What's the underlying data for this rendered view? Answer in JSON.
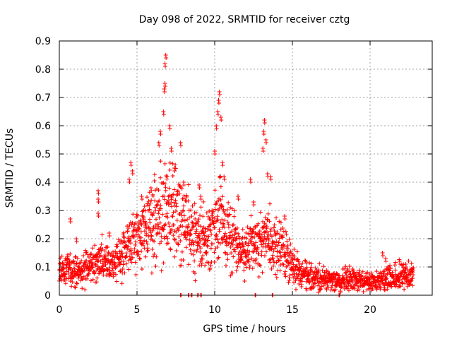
{
  "chart_data": {
    "type": "scatter",
    "title": "Day 098 of 2022, SRMTID for receiver cztg",
    "xlabel": "GPS time / hours",
    "ylabel": "SRMTID / TECUs",
    "xlim": [
      0,
      24
    ],
    "ylim": [
      0,
      0.9
    ],
    "xticks": [
      0,
      5,
      10,
      15,
      20
    ],
    "xtick_labels": [
      "0",
      "5",
      "10",
      "15",
      "20"
    ],
    "yticks": [
      0,
      0.1,
      0.2,
      0.3,
      0.4,
      0.5,
      0.6,
      0.7,
      0.8,
      0.9
    ],
    "ytick_labels": [
      "0",
      "0.1",
      "0.2",
      "0.3",
      "0.4",
      "0.5",
      "0.6",
      "0.7",
      "0.8",
      "0.9"
    ],
    "grid": true,
    "marker": "+",
    "color": "#ff0000",
    "series": [
      {
        "name": "SRMTID",
        "profile": [
          [
            0.0,
            0.08
          ],
          [
            0.5,
            0.09
          ],
          [
            1.0,
            0.08
          ],
          [
            1.5,
            0.09
          ],
          [
            2.0,
            0.1
          ],
          [
            2.5,
            0.12
          ],
          [
            3.0,
            0.12
          ],
          [
            3.5,
            0.12
          ],
          [
            4.0,
            0.14
          ],
          [
            4.5,
            0.17
          ],
          [
            5.0,
            0.2
          ],
          [
            5.5,
            0.22
          ],
          [
            6.0,
            0.25
          ],
          [
            6.5,
            0.3
          ],
          [
            7.0,
            0.32
          ],
          [
            7.5,
            0.3
          ],
          [
            8.0,
            0.26
          ],
          [
            8.5,
            0.23
          ],
          [
            9.0,
            0.2
          ],
          [
            9.5,
            0.19
          ],
          [
            10.0,
            0.25
          ],
          [
            10.5,
            0.27
          ],
          [
            11.0,
            0.2
          ],
          [
            11.5,
            0.16
          ],
          [
            12.0,
            0.15
          ],
          [
            12.5,
            0.18
          ],
          [
            13.0,
            0.2
          ],
          [
            13.5,
            0.19
          ],
          [
            14.0,
            0.18
          ],
          [
            14.5,
            0.16
          ],
          [
            15.0,
            0.12
          ],
          [
            15.5,
            0.08
          ],
          [
            16.0,
            0.07
          ],
          [
            16.5,
            0.06
          ],
          [
            17.0,
            0.06
          ],
          [
            17.5,
            0.05
          ],
          [
            18.0,
            0.05
          ],
          [
            18.5,
            0.06
          ],
          [
            19.0,
            0.06
          ],
          [
            19.5,
            0.05
          ],
          [
            20.0,
            0.04
          ],
          [
            20.5,
            0.05
          ],
          [
            21.0,
            0.06
          ],
          [
            21.5,
            0.06
          ],
          [
            22.0,
            0.07
          ],
          [
            22.5,
            0.07
          ],
          [
            22.8,
            0.06
          ]
        ],
        "peaks": [
          [
            0.7,
            0.27
          ],
          [
            1.1,
            0.2
          ],
          [
            2.5,
            0.37
          ],
          [
            2.5,
            0.34
          ],
          [
            2.5,
            0.29
          ],
          [
            3.2,
            0.22
          ],
          [
            4.6,
            0.47
          ],
          [
            4.5,
            0.41
          ],
          [
            4.7,
            0.44
          ],
          [
            5.3,
            0.35
          ],
          [
            5.9,
            0.38
          ],
          [
            6.4,
            0.54
          ],
          [
            6.5,
            0.58
          ],
          [
            6.7,
            0.65
          ],
          [
            6.75,
            0.73
          ],
          [
            6.8,
            0.75
          ],
          [
            6.8,
            0.82
          ],
          [
            6.85,
            0.85
          ],
          [
            7.1,
            0.6
          ],
          [
            7.2,
            0.52
          ],
          [
            7.4,
            0.45
          ],
          [
            7.8,
            0.54
          ],
          [
            8.0,
            0.4
          ],
          [
            9.0,
            0.39
          ],
          [
            9.1,
            0.35
          ],
          [
            10.0,
            0.51
          ],
          [
            10.1,
            0.6
          ],
          [
            10.2,
            0.65
          ],
          [
            10.25,
            0.69
          ],
          [
            10.3,
            0.72
          ],
          [
            10.4,
            0.63
          ],
          [
            10.5,
            0.47
          ],
          [
            10.6,
            0.42
          ],
          [
            11.5,
            0.35
          ],
          [
            12.3,
            0.41
          ],
          [
            12.5,
            0.33
          ],
          [
            13.1,
            0.52
          ],
          [
            13.15,
            0.58
          ],
          [
            13.2,
            0.62
          ],
          [
            13.3,
            0.55
          ],
          [
            13.4,
            0.43
          ],
          [
            13.6,
            0.42
          ],
          [
            14.5,
            0.28
          ],
          [
            20.8,
            0.15
          ],
          [
            21.0,
            0.13
          ],
          [
            21.9,
            0.12
          ],
          [
            22.3,
            0.11
          ]
        ],
        "zeros": [
          7.8,
          8.3,
          8.5,
          8.9,
          9.1,
          12.6,
          13.7,
          18.0
        ]
      }
    ]
  }
}
